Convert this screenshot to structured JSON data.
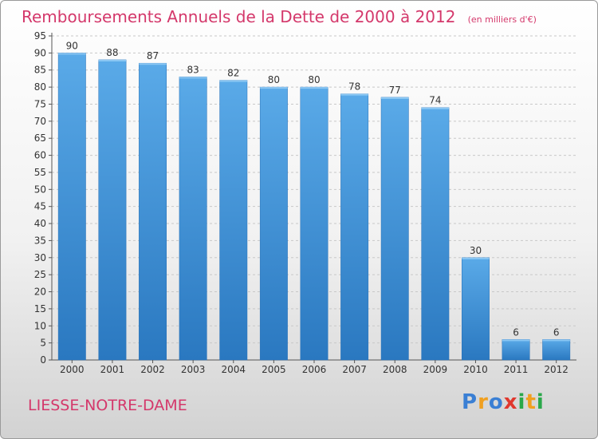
{
  "header": {
    "title": "Remboursements Annuels de la Dette de 2000 à 2012",
    "unit": "(en milliers d'€)"
  },
  "footer": {
    "commune": "LIESSE-NOTRE-DAME",
    "logo_letters": [
      "P",
      "r",
      "o",
      "x",
      "i",
      "t",
      "i"
    ],
    "logo_colors": [
      "#3a7fd4",
      "#f0a020",
      "#3a7fd4",
      "#e0382e",
      "#2aa84a",
      "#f0a020",
      "#2aa84a"
    ]
  },
  "chart_data": {
    "type": "bar",
    "categories": [
      "2000",
      "2001",
      "2002",
      "2003",
      "2004",
      "2005",
      "2006",
      "2007",
      "2008",
      "2009",
      "2010",
      "2011",
      "2012"
    ],
    "values": [
      90,
      88,
      87,
      83,
      82,
      80,
      80,
      78,
      77,
      74,
      30,
      6,
      6
    ],
    "value_labels": [
      "90",
      "88",
      "87",
      "83",
      "82",
      "80",
      "80",
      "78",
      "77",
      "74",
      "30",
      "6",
      "6"
    ],
    "title": "Remboursements Annuels de la Dette de 2000 à 2012",
    "xlabel": "",
    "ylabel": "",
    "ylim": [
      0,
      95
    ],
    "y_ticks": [
      0,
      5,
      10,
      15,
      20,
      25,
      30,
      35,
      40,
      45,
      50,
      55,
      60,
      65,
      70,
      75,
      80,
      85,
      90,
      95
    ],
    "grid": true,
    "bar_color": "#4f9fe0",
    "bar_color_dark": "#2a72b8"
  }
}
